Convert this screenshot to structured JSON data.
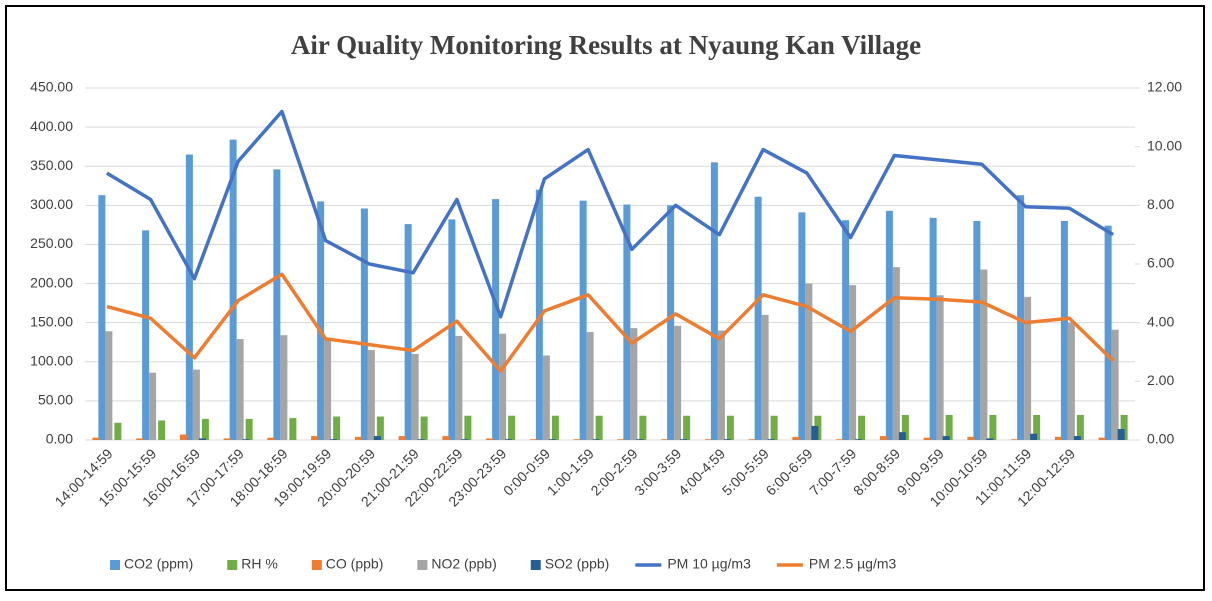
{
  "chart_data": {
    "type": "bar-line",
    "title": "Air Quality Monitoring Results at Nyaung Kan Village",
    "categories": [
      "14:00-14:59",
      "15:00-15:59",
      "16:00-16:59",
      "17:00-17:59",
      "18:00-18:59",
      "19:00-19:59",
      "20:00-20:59",
      "21:00-21:59",
      "22:00-22:59",
      "23:00-23:59",
      "0:00-0:59",
      "1:00-1:59",
      "2:00-2:59",
      "3:00-3:59",
      "4:00-4:59",
      "5:00-5:59",
      "6:00-6:59",
      "7:00-7:59",
      "8:00-8:59",
      "9:00-9:59",
      "10:00-10:59",
      "11:00-11:59",
      "12:00-12:59",
      null
    ],
    "series": [
      {
        "name": "CO2 (ppm)",
        "color": "#5b9bd5",
        "kind": "bar",
        "values": [
          313,
          268,
          365,
          384,
          346,
          305,
          296,
          276,
          282,
          308,
          320,
          306,
          301,
          300,
          355,
          311,
          291,
          281,
          293,
          284,
          280,
          313,
          280,
          274
        ]
      },
      {
        "name": "RH %",
        "color": "#70ad47",
        "kind": "bar",
        "values": [
          22,
          25,
          27,
          27,
          28,
          30,
          30,
          30,
          31,
          31,
          31,
          31,
          31,
          31,
          31,
          31,
          31,
          31,
          32,
          32,
          32,
          32,
          32,
          32
        ]
      },
      {
        "name": "CO (ppb)",
        "color": "#ed7d31",
        "kind": "bar",
        "values": [
          3,
          2,
          7,
          2,
          3,
          5,
          4,
          5,
          5,
          2,
          1,
          1,
          1,
          1,
          1,
          1,
          4,
          1,
          5,
          3,
          4,
          1,
          4,
          3
        ]
      },
      {
        "name": "NO2 (ppb)",
        "color": "#a5a5a5",
        "kind": "bar",
        "values": [
          139,
          86,
          90,
          129,
          134,
          130,
          115,
          110,
          133,
          136,
          108,
          138,
          143,
          146,
          140,
          160,
          200,
          198,
          221,
          185,
          218,
          183,
          150,
          141
        ]
      },
      {
        "name": "SO2 (ppb)",
        "color": "#255e91",
        "kind": "bar",
        "values": [
          0,
          0,
          2,
          1,
          0,
          1,
          5,
          1,
          1,
          1,
          1,
          1,
          1,
          1,
          1,
          1,
          18,
          1,
          10,
          5,
          2,
          8,
          5,
          14
        ]
      },
      {
        "name": "PM 10 µg/m3",
        "color": "#4472c4",
        "kind": "line",
        "axis": "y2",
        "values": [
          9.1,
          8.2,
          5.5,
          9.5,
          11.2,
          6.8,
          6.0,
          5.7,
          8.2,
          4.2,
          8.9,
          9.9,
          6.5,
          8.0,
          7.0,
          9.9,
          9.1,
          6.9,
          9.7,
          9.55,
          9.4,
          7.95,
          7.9,
          7.0
        ]
      },
      {
        "name": "PM 2.5  µg/m3",
        "color": "#ed7d31",
        "kind": "line",
        "axis": "y2",
        "values": [
          4.55,
          4.15,
          2.8,
          4.75,
          5.65,
          3.45,
          3.25,
          3.05,
          4.05,
          2.35,
          4.4,
          4.95,
          3.3,
          4.3,
          3.45,
          4.95,
          4.55,
          3.7,
          4.85,
          4.8,
          4.7,
          4.0,
          4.15,
          2.7
        ]
      }
    ],
    "ylim": [
      0,
      450
    ],
    "yticks": [
      {
        "value": 0,
        "label": "0.00"
      },
      {
        "value": 50,
        "label": "50.00"
      },
      {
        "value": 100,
        "label": "100.00"
      },
      {
        "value": 150,
        "label": "150.00"
      },
      {
        "value": 200,
        "label": "200.00"
      },
      {
        "value": 250,
        "label": "250.00"
      },
      {
        "value": 300,
        "label": "300.00"
      },
      {
        "value": 350,
        "label": "350.00"
      },
      {
        "value": 400,
        "label": "400.00"
      },
      {
        "value": 450,
        "label": "450.00"
      }
    ],
    "y2lim": [
      0,
      12
    ],
    "y2ticks": [
      {
        "value": 0,
        "label": "0.00"
      },
      {
        "value": 2,
        "label": "2.00"
      },
      {
        "value": 4,
        "label": "4.00"
      },
      {
        "value": 6,
        "label": "6.00"
      },
      {
        "value": 8,
        "label": "8.00"
      },
      {
        "value": 10,
        "label": "10.00"
      },
      {
        "value": 12,
        "label": "12.00"
      }
    ],
    "legend": "bottom"
  }
}
